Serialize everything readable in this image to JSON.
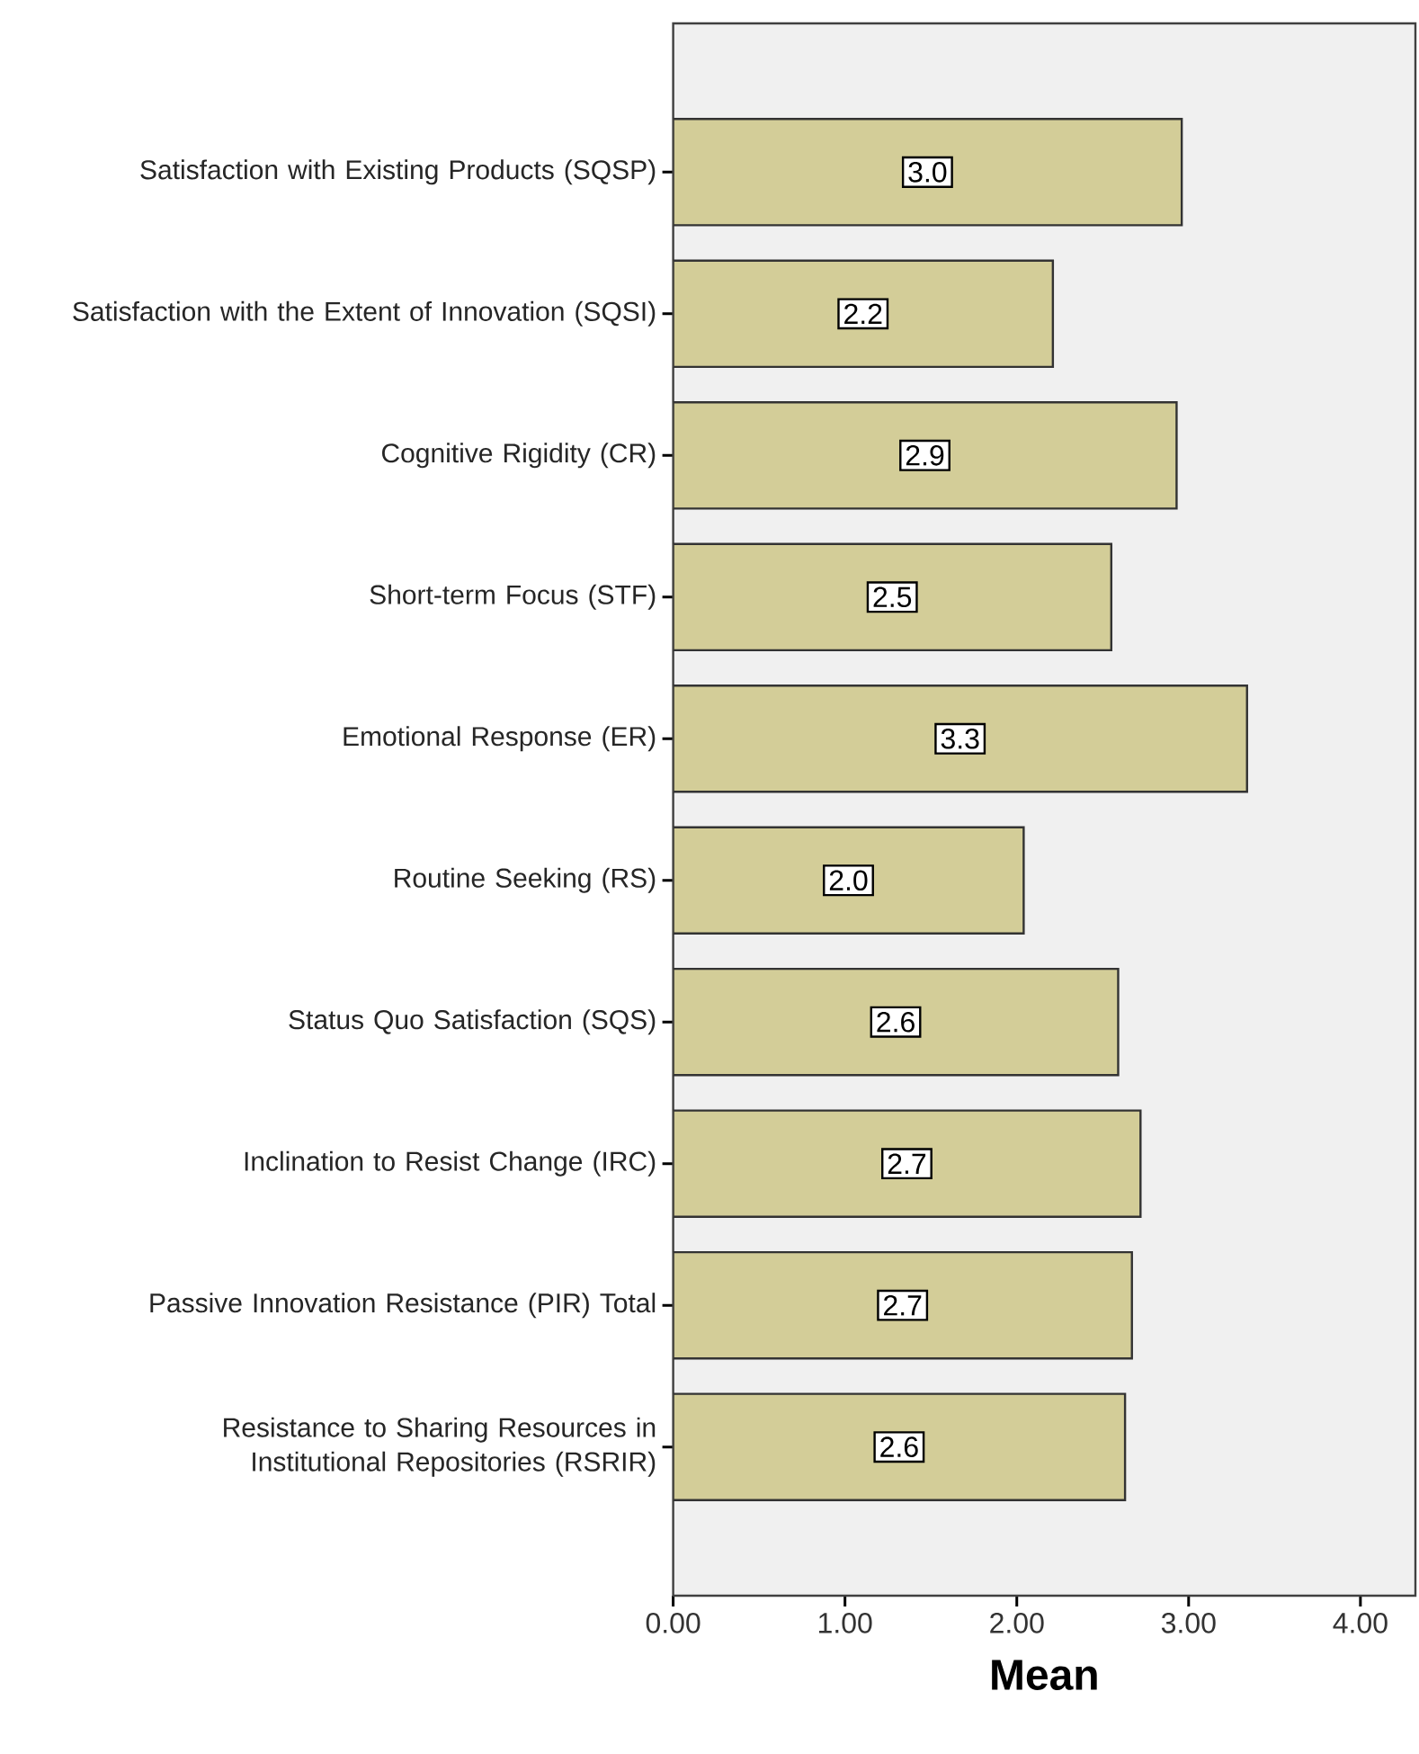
{
  "chart_data": {
    "type": "bar",
    "orientation": "horizontal",
    "xlabel": "Mean",
    "categories": [
      "Satisfaction with Existing Products (SQSP)",
      "Satisfaction with the Extent of Innovation (SQSI)",
      "Cognitive Rigidity (CR)",
      "Short-term Focus (STF)",
      "Emotional Response (ER)",
      "Routine Seeking (RS)",
      "Status Quo Satisfaction (SQS)",
      "Inclination to Resist Change (IRC)",
      "Passive Innovation Resistance (PIR) Total",
      "Resistance to Sharing Resources in Institutional Repositories (RSRIR)"
    ],
    "values": [
      2.96,
      2.21,
      2.93,
      2.55,
      3.34,
      2.04,
      2.59,
      2.72,
      2.67,
      2.63
    ],
    "value_labels": [
      "3.0",
      "2.2",
      "2.9",
      "2.5",
      "3.3",
      "2.0",
      "2.6",
      "2.7",
      "2.7",
      "2.6"
    ],
    "color": "#d3cd98",
    "xlim": [
      0,
      4.32
    ],
    "xticks": [
      {
        "value": 0,
        "label": "0.00"
      },
      {
        "value": 1,
        "label": "1.00"
      },
      {
        "value": 2,
        "label": "2.00"
      },
      {
        "value": 3,
        "label": "3.00"
      },
      {
        "value": 4,
        "label": "4.00"
      }
    ]
  }
}
